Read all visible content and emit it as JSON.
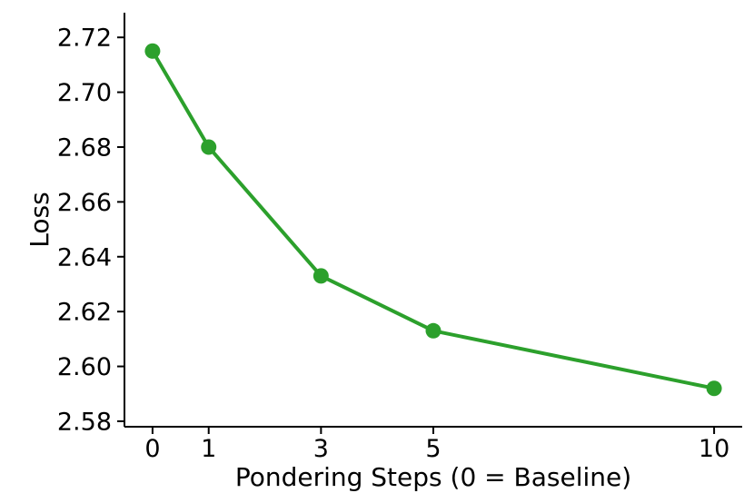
{
  "figure": {
    "background": "#ffffff",
    "text_color": "#000000",
    "axis_color": "#000000"
  },
  "chart_data": {
    "type": "line",
    "x": [
      0,
      1,
      3,
      5,
      10
    ],
    "y": [
      2.715,
      2.68,
      2.633,
      2.613,
      2.592
    ],
    "xlabel": "Pondering Steps (0 = Baseline)",
    "ylabel": "Loss",
    "x_tick_values": [
      0,
      1,
      3,
      5,
      10
    ],
    "x_tick_labels": [
      "0",
      "1",
      "3",
      "5",
      "10"
    ],
    "y_tick_values": [
      2.58,
      2.6,
      2.62,
      2.64,
      2.66,
      2.68,
      2.7,
      2.72
    ],
    "y_tick_decimals": 2,
    "xlim": [
      -0.5,
      10.5
    ],
    "ylim": [
      2.578,
      2.729
    ],
    "grid": false,
    "legend": "none",
    "title": "",
    "line_color": "#2ca02c",
    "marker_color": "#2ca02c",
    "marker_shape": "circle"
  }
}
